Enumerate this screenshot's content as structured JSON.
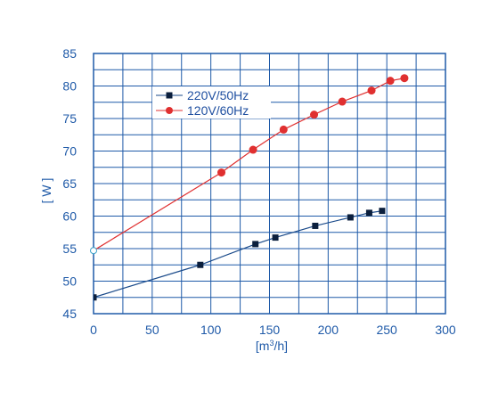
{
  "chart_data": {
    "type": "line",
    "xlabel_base": "[m",
    "xlabel_sup": "3",
    "xlabel_tail": "/h]",
    "ylabel": "[ W ]",
    "xlim": [
      0,
      300
    ],
    "ylim": [
      45,
      85
    ],
    "x_ticks": [
      "0",
      "50",
      "100",
      "150",
      "200",
      "250",
      "300"
    ],
    "y_ticks": [
      "45",
      "50",
      "55",
      "60",
      "65",
      "70",
      "75",
      "80",
      "85"
    ],
    "grid": true,
    "legend_position": "top-left",
    "series": [
      {
        "name": "220V/50Hz",
        "color": "#1a4a8a",
        "marker": "square",
        "x": [
          0,
          91,
          138,
          155,
          189,
          219,
          235,
          246
        ],
        "y": [
          47.5,
          52.5,
          55.7,
          56.7,
          58.5,
          59.8,
          60.5,
          60.8
        ]
      },
      {
        "name": "120V/60Hz",
        "color": "#e03030",
        "marker": "circle",
        "x": [
          0,
          109,
          136,
          162,
          188,
          212,
          237,
          253,
          265
        ],
        "y": [
          54.7,
          66.7,
          70.2,
          73.3,
          75.6,
          77.6,
          79.3,
          80.8,
          81.2
        ]
      }
    ]
  }
}
